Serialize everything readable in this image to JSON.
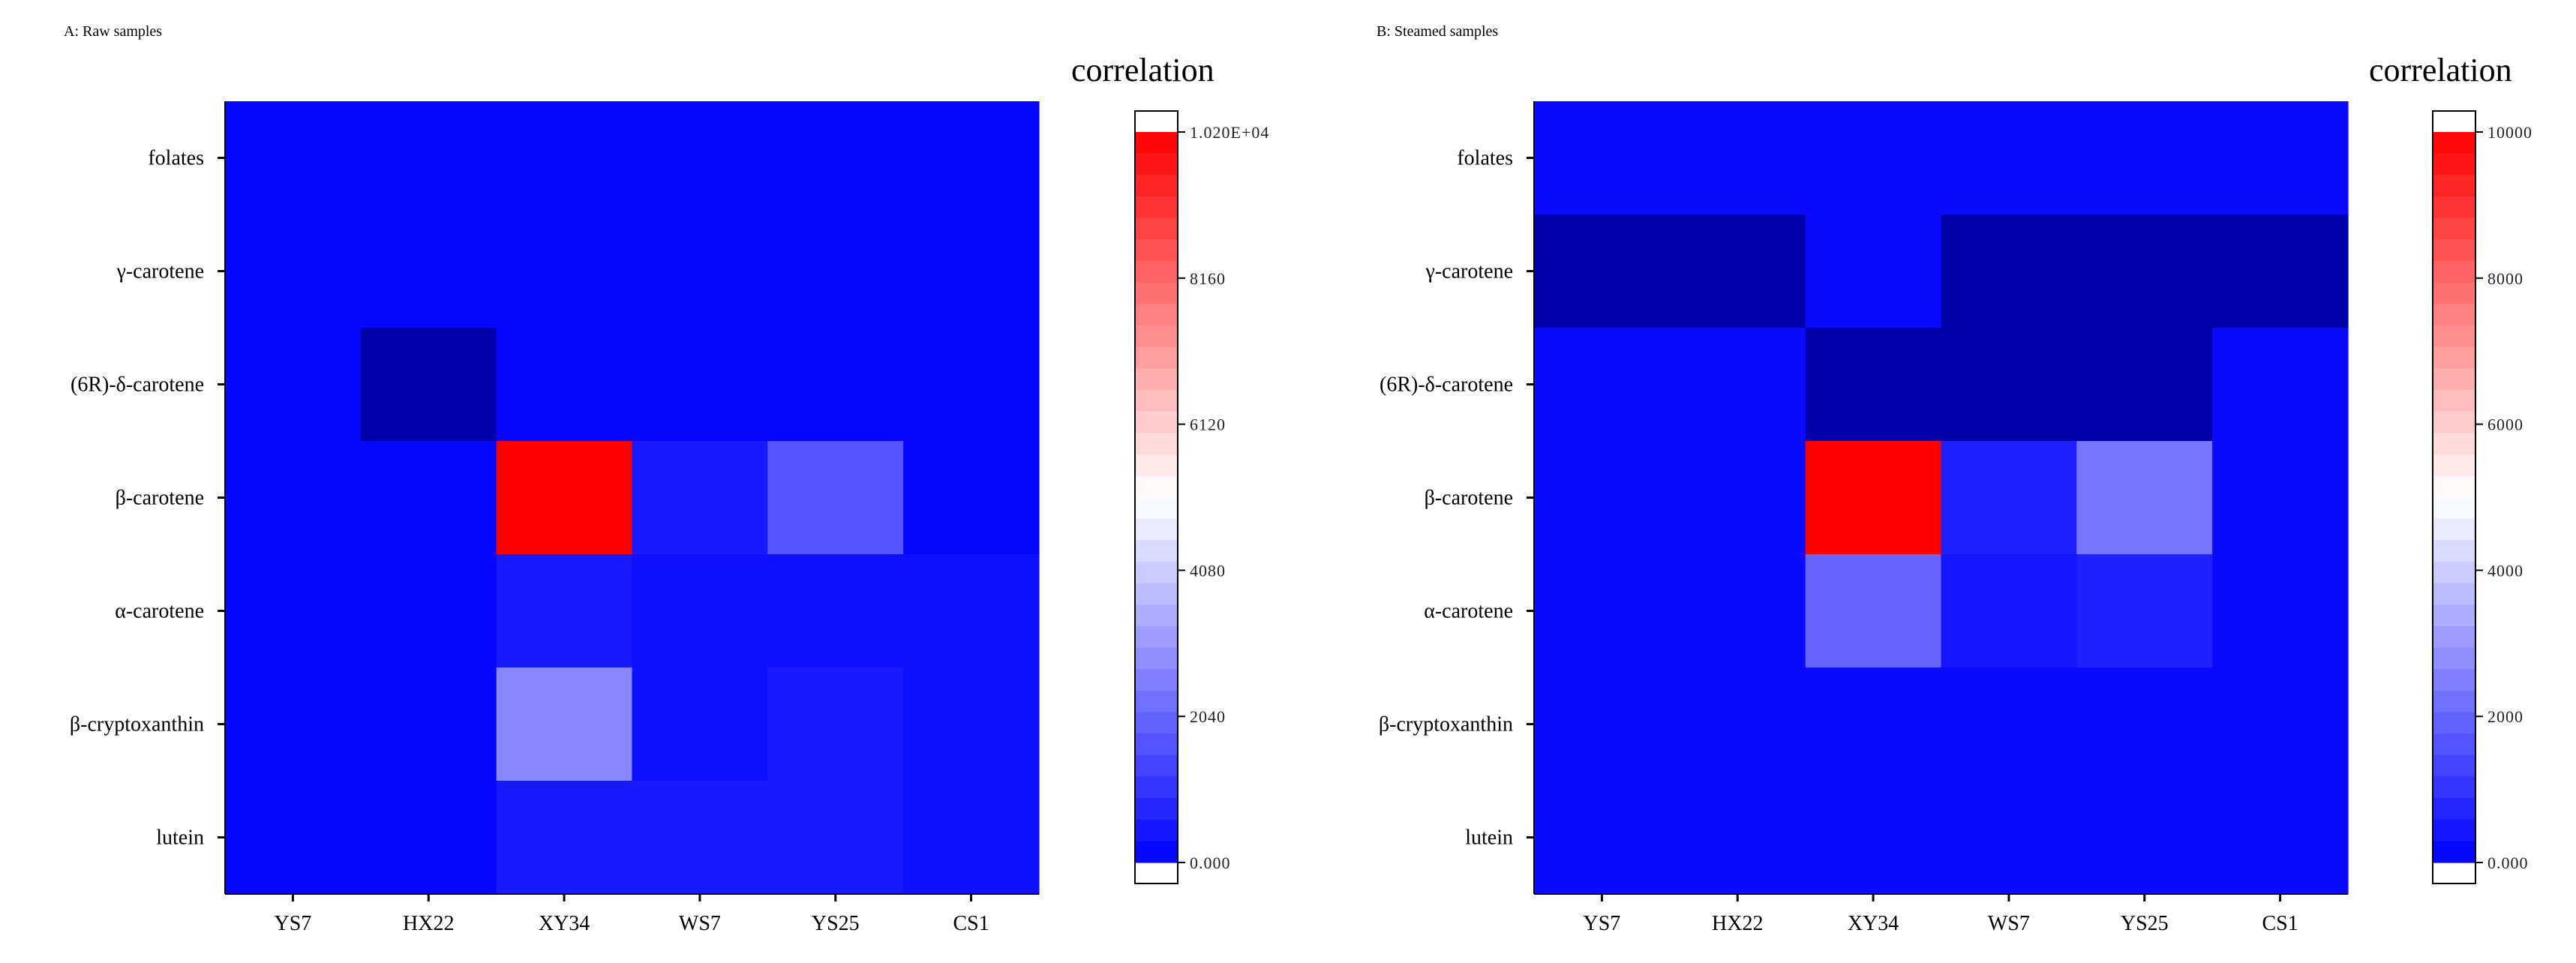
{
  "chart_data": [
    {
      "type": "heatmap",
      "panel_label": "A: Raw samples",
      "legend_title": "correlation",
      "columns": [
        "YS7",
        "HX22",
        "XY34",
        "WS7",
        "YS25",
        "CS1"
      ],
      "rows": [
        "folates",
        "γ-carotene",
        "(6R)-δ-carotene",
        "β-carotene",
        "α-carotene",
        "β-cryptoxanthin",
        "lutein"
      ],
      "values": [
        [
          120,
          120,
          120,
          120,
          120,
          120
        ],
        [
          120,
          120,
          120,
          120,
          120,
          120
        ],
        [
          120,
          0,
          120,
          120,
          120,
          120
        ],
        [
          120,
          120,
          10200,
          500,
          1700,
          120
        ],
        [
          120,
          120,
          500,
          300,
          300,
          300
        ],
        [
          120,
          120,
          2700,
          300,
          500,
          300
        ],
        [
          120,
          120,
          500,
          500,
          500,
          300
        ]
      ],
      "color_scale": {
        "min": 0,
        "max": 10200,
        "low": "#0000ff",
        "mid": "#ffffff",
        "high": "#ff0000",
        "dark": "#0000aa",
        "tick_labels": [
          "0.000",
          "2040",
          "4080",
          "6120",
          "8160",
          "1.020E+04"
        ]
      }
    },
    {
      "type": "heatmap",
      "panel_label": "B: Steamed samples",
      "legend_title": "correlation",
      "columns": [
        "YS7",
        "HX22",
        "XY34",
        "WS7",
        "YS25",
        "CS1"
      ],
      "rows": [
        "folates",
        "γ-carotene",
        "(6R)-δ-carotene",
        "β-carotene",
        "α-carotene",
        "β-cryptoxanthin",
        "lutein"
      ],
      "values": [
        [
          200,
          200,
          200,
          200,
          200,
          200
        ],
        [
          0,
          0,
          200,
          0,
          0,
          0
        ],
        [
          200,
          200,
          0,
          0,
          0,
          200
        ],
        [
          200,
          200,
          10000,
          600,
          2300,
          200
        ],
        [
          200,
          200,
          2000,
          400,
          600,
          200
        ],
        [
          200,
          200,
          200,
          200,
          200,
          200
        ],
        [
          200,
          200,
          200,
          200,
          200,
          200
        ]
      ],
      "color_scale": {
        "min": 0,
        "max": 10000,
        "low": "#0000ff",
        "mid": "#ffffff",
        "high": "#ff0000",
        "dark": "#0000aa",
        "tick_labels": [
          "0.000",
          "2000",
          "4000",
          "6000",
          "8000",
          "10000"
        ]
      }
    }
  ]
}
